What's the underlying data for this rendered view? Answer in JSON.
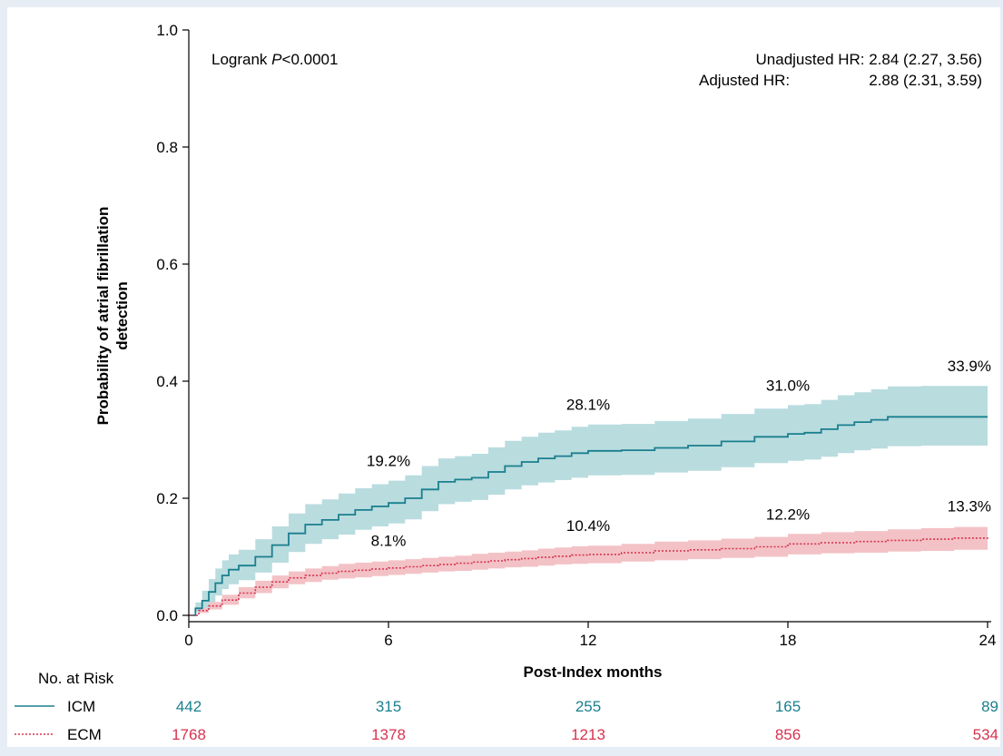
{
  "chart_data": {
    "type": "line",
    "subtype": "kaplan-meier-cumulative-incidence",
    "ylabel_line1": "Probability of atrial fibrillation",
    "ylabel_line2": "detection",
    "xlabel": "Post-Index months",
    "xlim": [
      0,
      24
    ],
    "ylim": [
      0,
      1.0
    ],
    "x_ticks": [
      0,
      6,
      12,
      18,
      24
    ],
    "x_tick_labels": [
      "0",
      "6",
      "12",
      "18",
      "24"
    ],
    "y_ticks": [
      0,
      0.2,
      0.4,
      0.6,
      0.8,
      1.0
    ],
    "y_tick_labels": [
      "0.0",
      "0.2",
      "0.4",
      "0.6",
      "0.8",
      "1.0"
    ],
    "grid": false,
    "annotations": {
      "logrank_prefix": "Logrank ",
      "logrank_p": "P",
      "logrank_value": "<0.0001",
      "unadjusted": "Unadjusted HR: 2.84 (2.27, 3.56)",
      "adjusted_label": "Adjusted HR:",
      "adjusted_value": "2.88 (2.31, 3.59)"
    },
    "series": [
      {
        "name": "ICM",
        "color": "#1a7f8e",
        "band_color": "#b9dcdf",
        "line_style": "solid",
        "x": [
          0,
          0.2,
          0.4,
          0.6,
          0.8,
          1.0,
          1.2,
          1.5,
          2.0,
          2.5,
          3.0,
          3.5,
          4.0,
          4.5,
          5.0,
          5.5,
          6.0,
          6.5,
          7.0,
          7.5,
          8.0,
          8.5,
          9.0,
          9.5,
          10.0,
          10.5,
          11.0,
          11.5,
          12.0,
          13.0,
          14.0,
          15.0,
          16.0,
          17.0,
          18.0,
          18.5,
          19.0,
          19.5,
          20.0,
          20.5,
          21.0,
          22.0,
          23.0,
          24.0
        ],
        "y": [
          0,
          0.012,
          0.025,
          0.04,
          0.055,
          0.068,
          0.078,
          0.085,
          0.1,
          0.12,
          0.14,
          0.155,
          0.163,
          0.172,
          0.18,
          0.186,
          0.192,
          0.2,
          0.215,
          0.228,
          0.232,
          0.235,
          0.245,
          0.255,
          0.262,
          0.268,
          0.272,
          0.277,
          0.281,
          0.282,
          0.286,
          0.29,
          0.297,
          0.305,
          0.31,
          0.312,
          0.318,
          0.325,
          0.33,
          0.334,
          0.339,
          0.339,
          0.339,
          0.339
        ],
        "ci_lower": [
          0,
          0.005,
          0.012,
          0.022,
          0.034,
          0.045,
          0.053,
          0.06,
          0.073,
          0.09,
          0.108,
          0.122,
          0.13,
          0.138,
          0.146,
          0.152,
          0.157,
          0.164,
          0.178,
          0.19,
          0.194,
          0.197,
          0.206,
          0.215,
          0.222,
          0.227,
          0.231,
          0.235,
          0.239,
          0.24,
          0.244,
          0.247,
          0.253,
          0.26,
          0.264,
          0.266,
          0.271,
          0.277,
          0.282,
          0.285,
          0.289,
          0.29,
          0.29,
          0.29
        ],
        "ci_upper": [
          0,
          0.022,
          0.042,
          0.062,
          0.08,
          0.094,
          0.104,
          0.112,
          0.13,
          0.152,
          0.174,
          0.19,
          0.198,
          0.208,
          0.217,
          0.224,
          0.23,
          0.239,
          0.255,
          0.268,
          0.272,
          0.276,
          0.287,
          0.298,
          0.305,
          0.312,
          0.316,
          0.322,
          0.326,
          0.327,
          0.332,
          0.336,
          0.344,
          0.353,
          0.359,
          0.361,
          0.368,
          0.376,
          0.381,
          0.386,
          0.391,
          0.392,
          0.392,
          0.392
        ]
      },
      {
        "name": "ECM",
        "color": "#d6334f",
        "band_color": "#f3c2c6",
        "line_style": "dotted",
        "x": [
          0,
          0.3,
          0.6,
          1.0,
          1.5,
          2.0,
          2.5,
          3.0,
          3.5,
          4.0,
          4.5,
          5.0,
          5.5,
          6.0,
          6.5,
          7.0,
          7.5,
          8.0,
          8.5,
          9.0,
          9.5,
          10.0,
          10.5,
          11.0,
          11.5,
          12.0,
          13.0,
          14.0,
          15.0,
          16.0,
          17.0,
          18.0,
          19.0,
          20.0,
          21.0,
          22.0,
          23.0,
          24.0
        ],
        "y": [
          0,
          0.008,
          0.016,
          0.026,
          0.038,
          0.048,
          0.057,
          0.064,
          0.068,
          0.072,
          0.075,
          0.077,
          0.079,
          0.081,
          0.083,
          0.085,
          0.087,
          0.089,
          0.091,
          0.093,
          0.095,
          0.097,
          0.099,
          0.101,
          0.103,
          0.104,
          0.107,
          0.11,
          0.112,
          0.114,
          0.117,
          0.122,
          0.124,
          0.126,
          0.128,
          0.13,
          0.132,
          0.133
        ],
        "ci_lower": [
          0,
          0.004,
          0.01,
          0.018,
          0.029,
          0.038,
          0.046,
          0.053,
          0.057,
          0.061,
          0.063,
          0.065,
          0.067,
          0.069,
          0.071,
          0.073,
          0.075,
          0.076,
          0.078,
          0.08,
          0.082,
          0.083,
          0.085,
          0.087,
          0.088,
          0.089,
          0.092,
          0.094,
          0.096,
          0.098,
          0.1,
          0.104,
          0.106,
          0.107,
          0.109,
          0.11,
          0.112,
          0.113
        ],
        "ci_upper": [
          0,
          0.013,
          0.023,
          0.035,
          0.048,
          0.059,
          0.068,
          0.075,
          0.08,
          0.084,
          0.088,
          0.09,
          0.092,
          0.094,
          0.096,
          0.098,
          0.1,
          0.102,
          0.105,
          0.107,
          0.109,
          0.111,
          0.114,
          0.116,
          0.118,
          0.119,
          0.122,
          0.126,
          0.128,
          0.131,
          0.134,
          0.139,
          0.142,
          0.144,
          0.147,
          0.149,
          0.151,
          0.153
        ]
      }
    ],
    "point_labels": [
      {
        "series": "ICM",
        "x": 6,
        "text": "19.2%"
      },
      {
        "series": "ICM",
        "x": 12,
        "text": "28.1%"
      },
      {
        "series": "ICM",
        "x": 18,
        "text": "31.0%"
      },
      {
        "series": "ICM",
        "x": 24,
        "text": "33.9%"
      },
      {
        "series": "ECM",
        "x": 6,
        "text": "8.1%"
      },
      {
        "series": "ECM",
        "x": 12,
        "text": "10.4%"
      },
      {
        "series": "ECM",
        "x": 18,
        "text": "12.2%"
      },
      {
        "series": "ECM",
        "x": 24,
        "text": "13.3%"
      }
    ],
    "risk_table": {
      "title": "No. at Risk",
      "times": [
        0,
        6,
        12,
        18,
        24
      ],
      "rows": [
        {
          "name": "ICM",
          "color": "#1a7f8e",
          "line_style": "solid",
          "counts": [
            "442",
            "315",
            "255",
            "165",
            "89"
          ]
        },
        {
          "name": "ECM",
          "color": "#d6334f",
          "line_style": "dotted",
          "counts": [
            "1768",
            "1378",
            "1213",
            "856",
            "534"
          ]
        }
      ]
    }
  }
}
